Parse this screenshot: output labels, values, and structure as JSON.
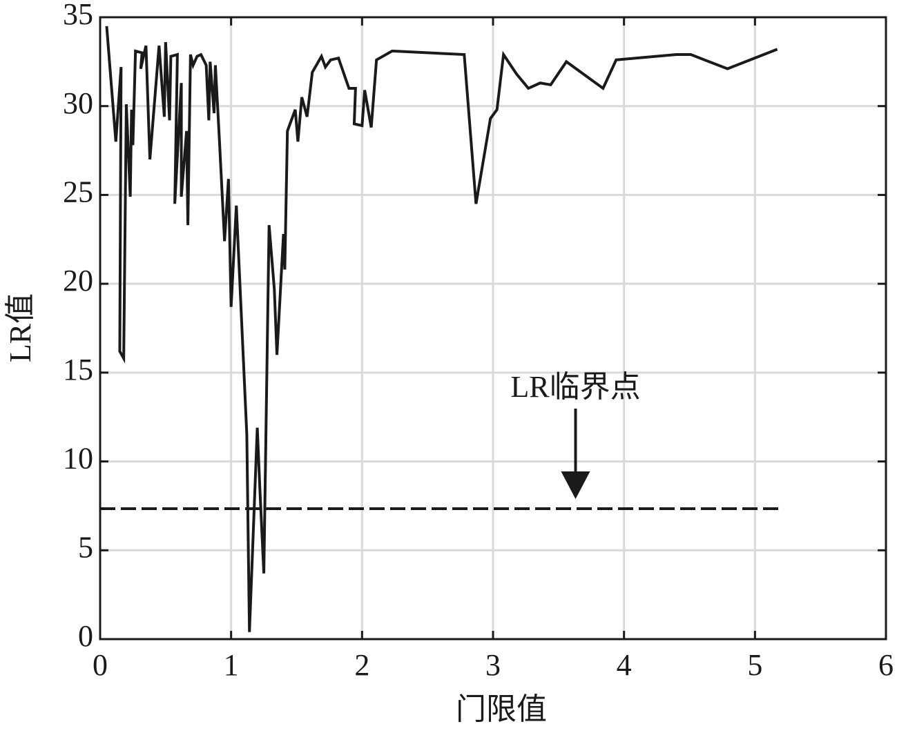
{
  "chart_data": {
    "type": "line",
    "xlabel": "门限值",
    "ylabel": "LR值",
    "x": [
      0.05,
      0.08,
      0.12,
      0.16,
      0.15,
      0.18,
      0.2,
      0.23,
      0.24,
      0.25,
      0.27,
      0.32,
      0.31,
      0.35,
      0.38,
      0.45,
      0.49,
      0.5,
      0.53,
      0.54,
      0.59,
      0.57,
      0.62,
      0.62,
      0.66,
      0.67,
      0.69,
      0.71,
      0.74,
      0.77,
      0.81,
      0.83,
      0.84,
      0.87,
      0.88,
      0.91,
      0.95,
      0.98,
      1.0,
      1.04,
      1.12,
      1.14,
      1.2,
      1.22,
      1.25,
      1.29,
      1.33,
      1.35,
      1.4,
      1.41,
      1.43,
      1.49,
      1.51,
      1.54,
      1.58,
      1.62,
      1.69,
      1.72,
      1.76,
      1.82,
      1.9,
      1.95,
      1.94,
      2.0,
      2.02,
      2.07,
      2.11,
      2.23,
      2.78,
      2.87,
      2.98,
      3.03,
      3.08,
      3.18,
      3.27,
      3.36,
      3.44,
      3.56,
      3.84,
      3.94,
      4.4,
      4.51,
      4.79,
      5.17
    ],
    "series": [
      {
        "color": "#1a1a1a",
        "values": [
          34.5,
          31.7,
          28.0,
          32.2,
          16.2,
          15.8,
          30.1,
          24.9,
          29.8,
          27.8,
          33.1,
          33.0,
          32.1,
          33.4,
          27.0,
          33.4,
          29.4,
          33.6,
          29.2,
          32.8,
          32.9,
          24.5,
          31.3,
          24.9,
          28.6,
          23.3,
          32.9,
          32.3,
          32.8,
          32.9,
          32.3,
          29.2,
          32.5,
          29.6,
          32.3,
          28.2,
          22.4,
          25.9,
          18.7,
          24.4,
          11.5,
          0.4,
          11.9,
          8.4,
          3.7,
          23.3,
          19.7,
          16.0,
          22.8,
          20.8,
          28.6,
          29.8,
          28.0,
          30.5,
          29.4,
          31.9,
          32.8,
          32.2,
          32.6,
          32.7,
          31.0,
          31.0,
          29.0,
          28.9,
          30.9,
          28.8,
          32.6,
          33.1,
          32.9,
          24.5,
          29.3,
          29.8,
          32.9,
          31.8,
          31.0,
          31.3,
          31.2,
          32.5,
          31.0,
          32.6,
          32.9,
          32.9,
          32.1,
          33.2
        ]
      }
    ],
    "reference_line": {
      "value": 7.34,
      "x": [
        0,
        5.22
      ],
      "style": "dashed"
    },
    "annotation": {
      "text": "LR临界点",
      "x": 3.63
    },
    "xlim": [
      0,
      6
    ],
    "xticks": [
      0,
      1,
      2,
      3,
      4,
      5,
      6
    ],
    "ylim": [
      0,
      35
    ],
    "yticks": [
      0,
      5,
      10,
      15,
      20,
      25,
      30,
      35
    ],
    "grid": true
  }
}
